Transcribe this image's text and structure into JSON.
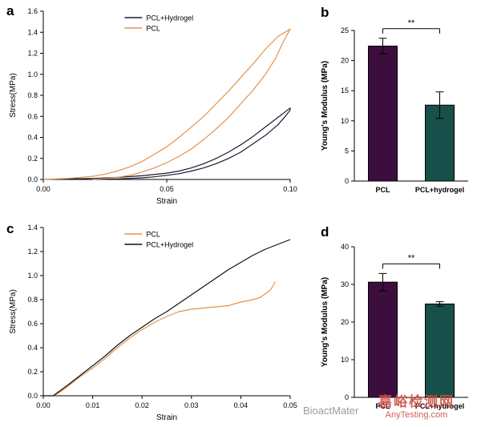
{
  "panels": {
    "a": "a",
    "b": "b",
    "c": "c",
    "d": "d"
  },
  "watermark": {
    "brand": "BioactMater",
    "cn": "嘉峪检测网",
    "site": "AnyTesting.com"
  },
  "chart_data": [
    {
      "id": "a",
      "type": "line",
      "xlabel": "Strain",
      "ylabel": "Stress(MPa)",
      "xlim": [
        0,
        0.1
      ],
      "ylim": [
        0,
        1.6
      ],
      "xticks": [
        0,
        0.05,
        0.1
      ],
      "xtick_labels": [
        "0.00",
        "0.05",
        "0.10"
      ],
      "yticks": [
        0,
        0.2,
        0.4,
        0.6,
        0.8,
        1.0,
        1.2,
        1.4,
        1.6
      ],
      "ytick_labels": [
        "0.0",
        "0.2",
        "0.4",
        "0.6",
        "0.8",
        "1.0",
        "1.2",
        "1.4",
        "1.6"
      ],
      "legend_position": "top-center",
      "series": [
        {
          "name": "PCL+Hydrogel",
          "color": "#1c1c34",
          "x": [
            0,
            0.01,
            0.02,
            0.03,
            0.04,
            0.05,
            0.055,
            0.06,
            0.065,
            0.07,
            0.075,
            0.08,
            0.085,
            0.09,
            0.095,
            0.1,
            0.1,
            0.098,
            0.095,
            0.09,
            0.085,
            0.08,
            0.075,
            0.07,
            0.065,
            0.06,
            0.055,
            0.05,
            0.045,
            0.04,
            0.03,
            0.02
          ],
          "y": [
            0,
            0.005,
            0.01,
            0.02,
            0.035,
            0.06,
            0.08,
            0.11,
            0.15,
            0.2,
            0.26,
            0.33,
            0.41,
            0.5,
            0.59,
            0.68,
            0.66,
            0.6,
            0.52,
            0.42,
            0.34,
            0.26,
            0.2,
            0.15,
            0.11,
            0.08,
            0.055,
            0.04,
            0.025,
            0.015,
            0.005,
            0
          ]
        },
        {
          "name": "PCL",
          "color": "#e2934e",
          "x": [
            0,
            0.01,
            0.02,
            0.025,
            0.03,
            0.035,
            0.04,
            0.045,
            0.05,
            0.055,
            0.06,
            0.065,
            0.07,
            0.075,
            0.08,
            0.085,
            0.09,
            0.095,
            0.1,
            0.1,
            0.097,
            0.094,
            0.09,
            0.085,
            0.08,
            0.075,
            0.07,
            0.065,
            0.06,
            0.055,
            0.05,
            0.045,
            0.04,
            0.035,
            0.03,
            0.025,
            0.02
          ],
          "y": [
            0,
            0.01,
            0.03,
            0.05,
            0.08,
            0.12,
            0.17,
            0.24,
            0.31,
            0.4,
            0.5,
            0.6,
            0.72,
            0.84,
            0.97,
            1.1,
            1.24,
            1.36,
            1.43,
            1.43,
            1.3,
            1.15,
            1.0,
            0.85,
            0.72,
            0.59,
            0.48,
            0.38,
            0.29,
            0.22,
            0.16,
            0.11,
            0.07,
            0.04,
            0.02,
            0.01,
            0
          ]
        }
      ]
    },
    {
      "id": "b",
      "type": "bar",
      "ylabel": "Young's Modulus (MPa)",
      "categories": [
        "PCL",
        "PCL+hydrogel"
      ],
      "values": [
        22.4,
        12.6
      ],
      "errors": [
        1.3,
        2.2
      ],
      "colors": [
        "#3c0e3e",
        "#17504a"
      ],
      "ylim": [
        0,
        25
      ],
      "yticks": [
        0,
        5,
        10,
        15,
        20,
        25
      ],
      "significance": "**"
    },
    {
      "id": "c",
      "type": "line",
      "xlabel": "Strain",
      "ylabel": "Stress(MPa)",
      "xlim": [
        0,
        0.05
      ],
      "ylim": [
        0,
        1.4
      ],
      "xticks": [
        0,
        0.01,
        0.02,
        0.03,
        0.04,
        0.05
      ],
      "xtick_labels": [
        "0.00",
        "0.01",
        "0.02",
        "0.03",
        "0.04",
        "0.05"
      ],
      "yticks": [
        0,
        0.2,
        0.4,
        0.6,
        0.8,
        1.0,
        1.2,
        1.4
      ],
      "ytick_labels": [
        "0.0",
        "0.2",
        "0.4",
        "0.6",
        "0.8",
        "1.0",
        "1.2",
        "1.4"
      ],
      "legend_position": "top-center",
      "series": [
        {
          "name": "PCL",
          "color": "#e2934e",
          "x": [
            0.001,
            0.002,
            0.003,
            0.005,
            0.0075,
            0.01,
            0.0125,
            0.015,
            0.0175,
            0.02,
            0.0225,
            0.025,
            0.0275,
            0.03,
            0.0325,
            0.035,
            0.0375,
            0.04,
            0.0425,
            0.044,
            0.046,
            0.047
          ],
          "y": [
            0,
            0,
            0.02,
            0.08,
            0.16,
            0.23,
            0.31,
            0.4,
            0.48,
            0.55,
            0.61,
            0.66,
            0.7,
            0.72,
            0.73,
            0.74,
            0.75,
            0.78,
            0.8,
            0.82,
            0.88,
            0.95
          ]
        },
        {
          "name": "PCL+Hydrogel",
          "color": "#111111",
          "x": [
            0,
            0.002,
            0.003,
            0.005,
            0.0075,
            0.01,
            0.0125,
            0.015,
            0.0175,
            0.02,
            0.0225,
            0.025,
            0.0275,
            0.03,
            0.0325,
            0.035,
            0.0375,
            0.04,
            0.0425,
            0.045,
            0.0475,
            0.05
          ],
          "y": [
            0,
            0,
            0.03,
            0.09,
            0.17,
            0.25,
            0.33,
            0.42,
            0.5,
            0.57,
            0.64,
            0.7,
            0.77,
            0.84,
            0.91,
            0.98,
            1.05,
            1.11,
            1.17,
            1.22,
            1.26,
            1.3
          ]
        }
      ]
    },
    {
      "id": "d",
      "type": "bar",
      "ylabel": "Young's Modulus (MPa)",
      "categories": [
        "PCL",
        "PCL+hydrogel"
      ],
      "values": [
        30.6,
        24.8
      ],
      "errors": [
        2.3,
        0.6
      ],
      "colors": [
        "#3c0e3e",
        "#17504a"
      ],
      "ylim": [
        0,
        40
      ],
      "yticks": [
        0,
        10,
        20,
        30,
        40
      ],
      "significance": "**"
    }
  ]
}
